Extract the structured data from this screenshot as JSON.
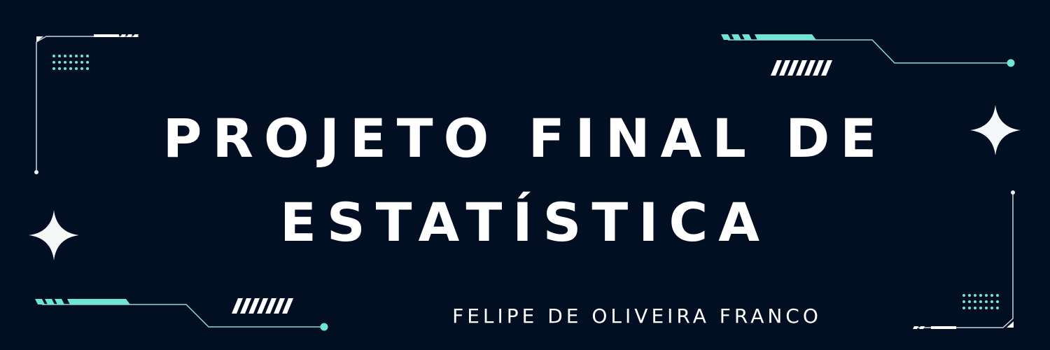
{
  "banner": {
    "title_line1": "PROJETO FINAL DE",
    "title_line2": "ESTATÍSTICA",
    "author": "FELIPE DE OLIVEIRA FRANCO"
  },
  "colors": {
    "background": "#020e22",
    "text": "#ffffff",
    "accent": "#6ee6d6"
  },
  "icons": [
    "sparkle-icon",
    "dot-grid-icon",
    "hatch-stripes-icon",
    "hud-corner-frame"
  ]
}
